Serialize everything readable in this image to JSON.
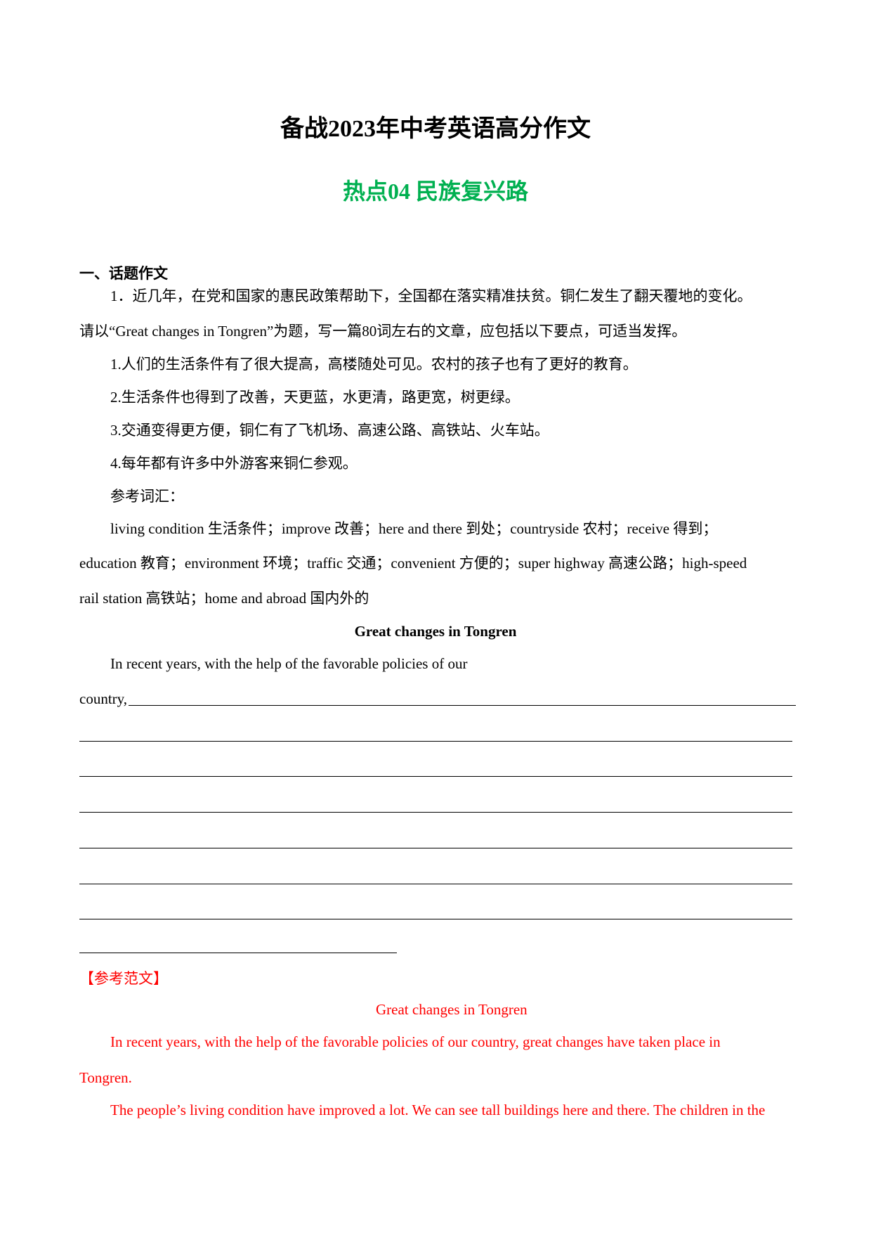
{
  "header": {
    "title": "备战2023年中考英语高分作文",
    "subtitle": "热点04 民族复兴路",
    "subtitle_color": "#00b050"
  },
  "section": {
    "heading": "一、话题作文",
    "prompt_line1": "1．近几年，在党和国家的惠民政策帮助下，全国都在落实精准扶贫。铜仁发生了翻天覆地的变化。",
    "prompt_line2": "请以“Great changes in Tongren”为题，写一篇80词左右的文章，应包括以下要点，可适当发挥。",
    "points": [
      "1.人们的生活条件有了很大提高，高楼随处可见。农村的孩子也有了更好的教育。",
      "2.生活条件也得到了改善，天更蓝，水更清，路更宽，树更绿。",
      "3.交通变得更方便，铜仁有了飞机场、高速公路、高铁站、火车站。",
      "4.每年都有许多中外游客来铜仁参观。"
    ],
    "vocab_label": "参考词汇：",
    "vocab_lines": [
      "living condition 生活条件；improve 改善；here and there 到处；countryside 农村；receive 得到；",
      "education 教育；environment 环境；traffic 交通；convenient 方便的；super highway 高速公路；high-speed",
      "rail station 高铁站；home and abroad 国内外的"
    ]
  },
  "essay": {
    "title": "Great changes in Tongren",
    "opening": "In recent years, with the help of the favorable policies of our",
    "continuation": "country,"
  },
  "sample": {
    "label": "【参考范文】",
    "color": "#ff0000",
    "title": "Great changes in Tongren",
    "lines": [
      "In recent years, with the help of the favorable policies of our country, great changes have taken place in",
      "Tongren.",
      "The people’s living condition have improved a lot. We can see tall buildings here and there. The children in the"
    ]
  }
}
